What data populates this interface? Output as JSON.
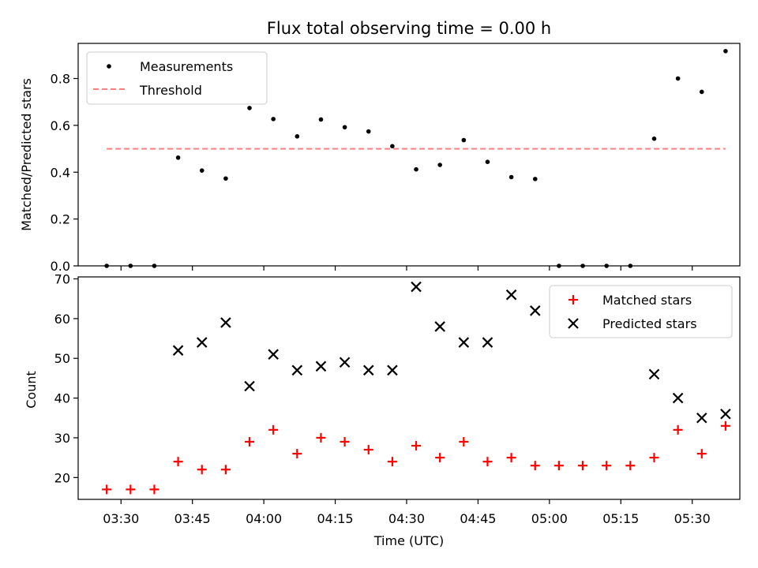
{
  "colors": {
    "measurement": "#000000",
    "threshold": "#ff7f7f",
    "matched": "#ff0000",
    "predicted": "#000000",
    "legend_frame": "#cccccc"
  },
  "chart_data": [
    {
      "type": "scatter",
      "title": "Flux total observing time = 0.00 h",
      "xlabel": "",
      "ylabel": "Matched/Predicted stars",
      "xlim": [
        "03:21",
        "05:40"
      ],
      "ylim": [
        0,
        0.95
      ],
      "yticks": [
        0.0,
        0.2,
        0.4,
        0.6,
        0.8
      ],
      "ytick_labels": [
        "0.0",
        "0.2",
        "0.4",
        "0.6",
        "0.8"
      ],
      "legend_placement": "upper-left",
      "x": [
        "03:27",
        "03:32",
        "03:37",
        "03:42",
        "03:47",
        "03:52",
        "03:57",
        "04:02",
        "04:07",
        "04:12",
        "04:17",
        "04:22",
        "04:27",
        "04:32",
        "04:37",
        "04:42",
        "04:47",
        "04:52",
        "04:57",
        "05:02",
        "05:07",
        "05:12",
        "05:17",
        "05:22",
        "05:27",
        "05:32",
        "05:37"
      ],
      "series": [
        {
          "name": "Measurements",
          "marker": "dot",
          "values": [
            0.0,
            0.0,
            0.0,
            0.462,
            0.407,
            0.373,
            0.674,
            0.627,
            0.553,
            0.625,
            0.592,
            0.574,
            0.511,
            0.412,
            0.431,
            0.537,
            0.444,
            0.379,
            0.371,
            0.0,
            0.0,
            0.0,
            0.0,
            0.543,
            0.8,
            0.743,
            0.917
          ]
        },
        {
          "name": "Threshold",
          "style": "dashed-line",
          "x": [
            "03:27",
            "05:37"
          ],
          "values": [
            0.5,
            0.5
          ]
        }
      ]
    },
    {
      "type": "scatter",
      "title": "",
      "xlabel": "Time (UTC)",
      "ylabel": "Count",
      "xlim": [
        "03:21",
        "05:40"
      ],
      "ylim": [
        14.5,
        70.5
      ],
      "yticks": [
        20,
        30,
        40,
        50,
        60,
        70
      ],
      "ytick_labels": [
        "20",
        "30",
        "40",
        "50",
        "60",
        "70"
      ],
      "xticks": [
        "03:30",
        "03:45",
        "04:00",
        "04:15",
        "04:30",
        "04:45",
        "05:00",
        "05:15",
        "05:30"
      ],
      "xtick_labels": [
        "03:30",
        "03:45",
        "04:00",
        "04:15",
        "04:30",
        "04:45",
        "05:00",
        "05:15",
        "05:30"
      ],
      "legend_placement": "upper-right",
      "x": [
        "03:27",
        "03:32",
        "03:37",
        "03:42",
        "03:47",
        "03:52",
        "03:57",
        "04:02",
        "04:07",
        "04:12",
        "04:17",
        "04:22",
        "04:27",
        "04:32",
        "04:37",
        "04:42",
        "04:47",
        "04:52",
        "04:57",
        "05:02",
        "05:07",
        "05:12",
        "05:17",
        "05:22",
        "05:27",
        "05:32",
        "05:37"
      ],
      "series": [
        {
          "name": "Matched stars",
          "marker": "plus",
          "values": [
            17,
            17,
            17,
            24,
            22,
            22,
            29,
            32,
            26,
            30,
            29,
            27,
            24,
            28,
            25,
            29,
            24,
            25,
            23,
            23,
            23,
            23,
            23,
            25,
            32,
            26,
            33
          ]
        },
        {
          "name": "Predicted stars",
          "marker": "x",
          "values": [
            null,
            null,
            null,
            52,
            54,
            59,
            43,
            51,
            47,
            48,
            49,
            47,
            47,
            68,
            58,
            54,
            54,
            66,
            62,
            null,
            null,
            null,
            null,
            46,
            40,
            35,
            36
          ]
        }
      ]
    }
  ]
}
